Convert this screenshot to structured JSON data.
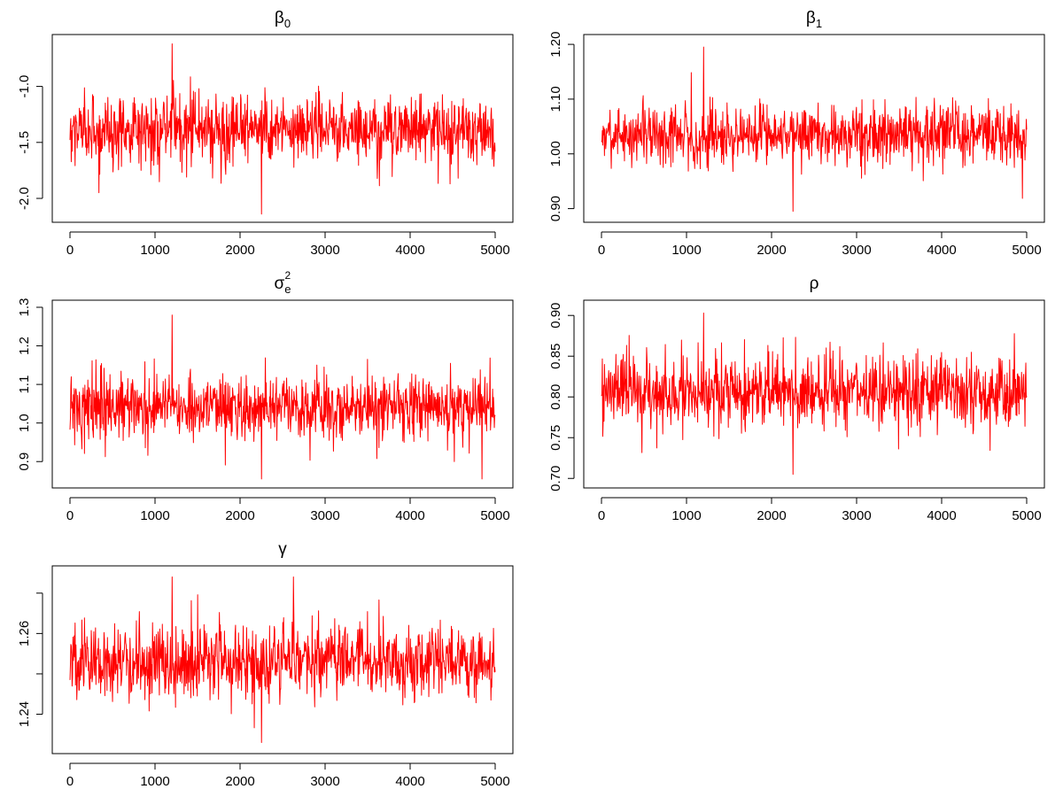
{
  "chart_data": [
    {
      "type": "line",
      "title": "β",
      "title_sub": "0",
      "title_sup": "",
      "xlim": [
        0,
        5000
      ],
      "ylim": [
        -2.15,
        -0.6
      ],
      "xticks": [
        0,
        1000,
        2000,
        3000,
        4000,
        5000
      ],
      "yticks": [
        -2.0,
        -1.5,
        -1.0
      ],
      "ytick_labels": [
        "-2.0",
        "-1.5",
        "-1.0"
      ],
      "series": [
        {
          "values": {
            "mean": -1.38,
            "sd": 0.15,
            "min": -2.14,
            "max": -0.62,
            "n": 5000
          }
        }
      ],
      "color": "#ff0000",
      "grid": false
    },
    {
      "type": "line",
      "title": "β",
      "title_sub": "1",
      "title_sup": "",
      "xlim": [
        0,
        5000
      ],
      "ylim": [
        0.888,
        1.205
      ],
      "xticks": [
        0,
        1000,
        2000,
        3000,
        4000,
        5000
      ],
      "yticks": [
        0.9,
        1.0,
        1.1,
        1.2
      ],
      "ytick_labels": [
        "0.90",
        "1.00",
        "1.10",
        "1.20"
      ],
      "series": [
        {
          "values": {
            "mean": 1.035,
            "sd": 0.027,
            "min": 0.895,
            "max": 1.195,
            "n": 5000
          }
        }
      ],
      "color": "#ff0000",
      "grid": false
    },
    {
      "type": "line",
      "title": "σ",
      "title_sub": "e",
      "title_sup": "2",
      "xlim": [
        0,
        5000
      ],
      "ylim": [
        0.85,
        1.3
      ],
      "xticks": [
        0,
        1000,
        2000,
        3000,
        4000,
        5000
      ],
      "yticks": [
        0.9,
        1.0,
        1.1,
        1.2,
        1.3
      ],
      "ytick_labels": [
        "0.9",
        "1.0",
        "1.1",
        "1.2",
        "1.3"
      ],
      "series": [
        {
          "values": {
            "mean": 1.04,
            "sd": 0.042,
            "min": 0.855,
            "max": 1.28,
            "n": 5000
          }
        }
      ],
      "color": "#ff0000",
      "grid": false
    },
    {
      "type": "line",
      "title": "ρ",
      "title_sub": "",
      "title_sup": "",
      "xlim": [
        0,
        5000
      ],
      "ylim": [
        0.697,
        0.91
      ],
      "xticks": [
        0,
        1000,
        2000,
        3000,
        4000,
        5000
      ],
      "yticks": [
        0.7,
        0.75,
        0.8,
        0.85,
        0.9
      ],
      "ytick_labels": [
        "0.70",
        "0.75",
        "0.80",
        "0.85",
        "0.90"
      ],
      "series": [
        {
          "values": {
            "mean": 0.806,
            "sd": 0.022,
            "min": 0.705,
            "max": 0.903,
            "n": 5000
          }
        }
      ],
      "color": "#ff0000",
      "grid": false
    },
    {
      "type": "line",
      "title": "γ",
      "title_sub": "",
      "title_sup": "",
      "xlim": [
        0,
        5000
      ],
      "ylim": [
        1.232,
        1.275
      ],
      "xticks": [
        0,
        1000,
        2000,
        3000,
        4000,
        5000
      ],
      "yticks": [
        1.24,
        1.26
      ],
      "minor_yticks": [
        1.25,
        1.27
      ],
      "ytick_labels": [
        "1.24",
        "1.26"
      ],
      "series": [
        {
          "values": {
            "mean": 1.2532,
            "sd": 0.0045,
            "min": 1.233,
            "max": 1.274,
            "n": 5000
          }
        }
      ],
      "color": "#ff0000",
      "grid": false
    }
  ]
}
